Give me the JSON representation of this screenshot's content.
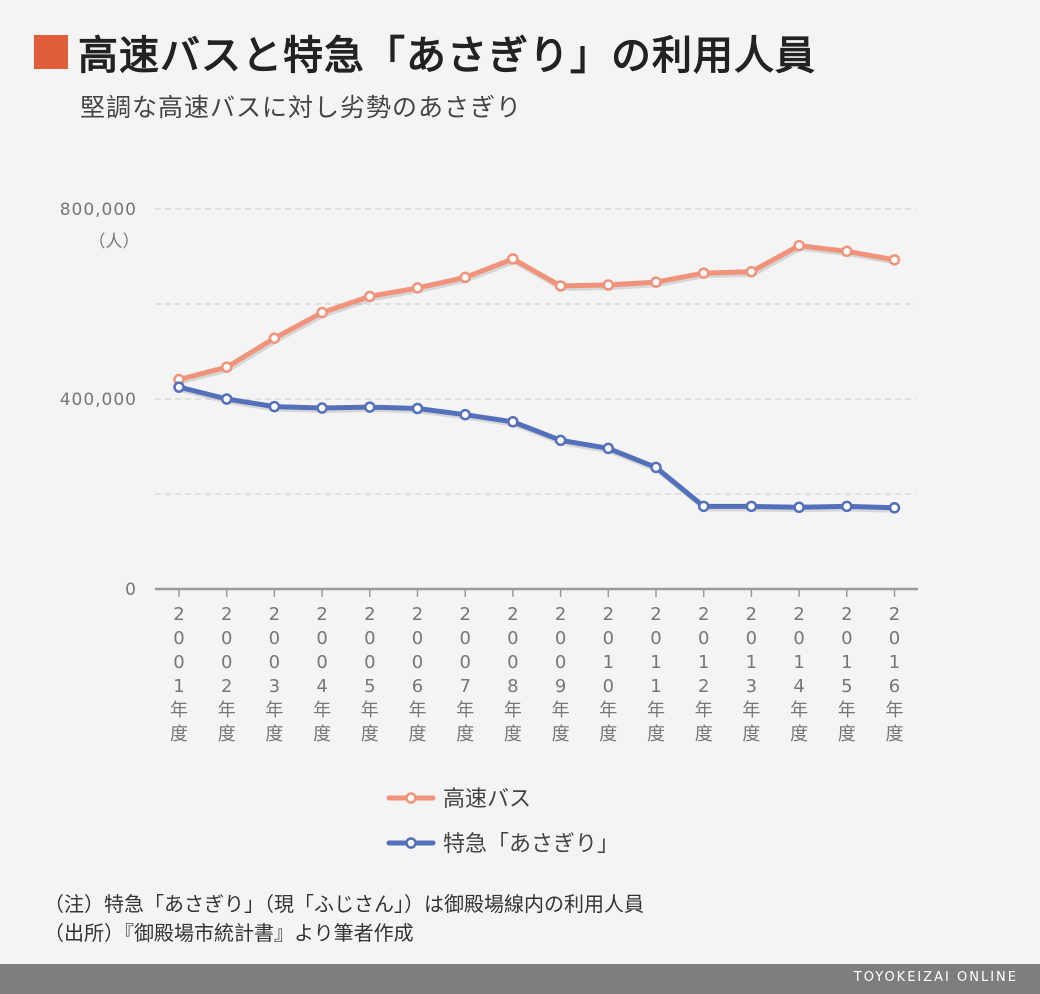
{
  "header": {
    "title": "高速バスと特急「あさぎり」の利用人員",
    "subtitle": "堅調な高速バスに対し劣勢のあさぎり",
    "accent_color": "#e05f3a"
  },
  "chart_data": {
    "type": "line",
    "title": "高速バスと特急「あさぎり」の利用人員",
    "subtitle": "堅調な高速バスに対し劣勢のあさぎり",
    "ylabel": "（人）",
    "ylim": [
      0,
      800000
    ],
    "yticks": [
      0,
      400000,
      800000
    ],
    "ytick_labels": [
      "0",
      "400,000",
      "800,000"
    ],
    "grid": true,
    "legend_position": "bottom-center",
    "categories": [
      "2001年度",
      "2002年度",
      "2003年度",
      "2004年度",
      "2005年度",
      "2006年度",
      "2007年度",
      "2008年度",
      "2009年度",
      "2010年度",
      "2011年度",
      "2012年度",
      "2013年度",
      "2014年度",
      "2015年度",
      "2016年度"
    ],
    "series": [
      {
        "name": "高速バス",
        "color": "#f0937a",
        "values": [
          441000,
          467000,
          528000,
          582000,
          616000,
          634000,
          656000,
          695000,
          638000,
          640000,
          646000,
          665000,
          668000,
          723000,
          711000,
          693000
        ]
      },
      {
        "name": "特急「あさぎり」",
        "color": "#5470bb",
        "values": [
          425000,
          400000,
          384000,
          381000,
          383000,
          380000,
          367000,
          352000,
          313000,
          296000,
          256000,
          174000,
          174000,
          172000,
          174000,
          171000
        ]
      }
    ]
  },
  "notes": {
    "note": "（注）特急「あさぎり」（現「ふじさん」）は御殿場線内の利用人員",
    "source": "（出所）『御殿場市統計書』より筆者作成"
  },
  "footer": {
    "credit": "TOYOKEIZAI ONLINE"
  }
}
